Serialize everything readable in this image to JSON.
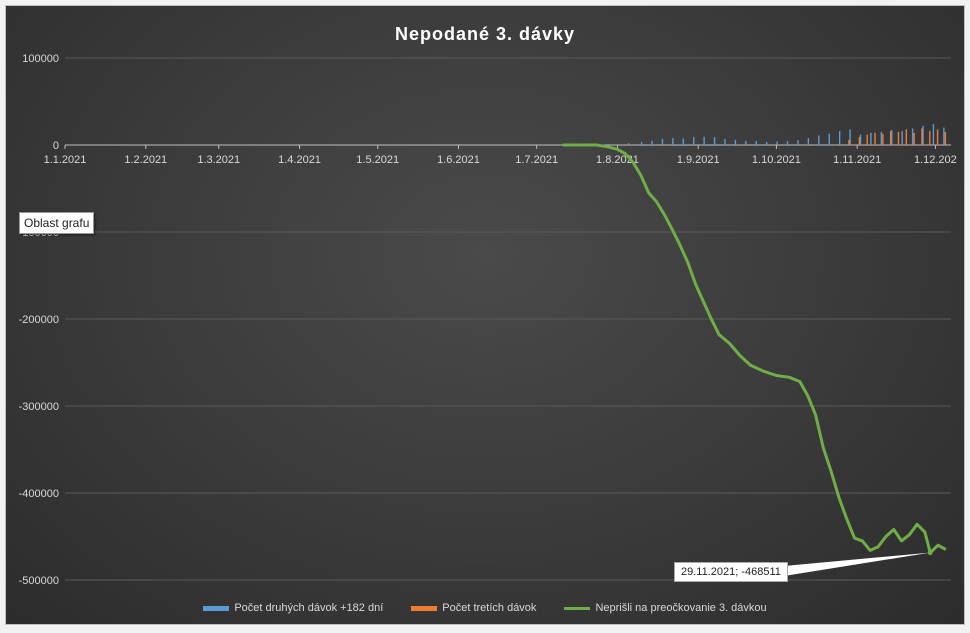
{
  "chart_data": {
    "type": "bar+line",
    "title": "Nepodané 3. dávky",
    "ylim": [
      -500000,
      100000
    ],
    "yticks": [
      100000,
      0,
      -100000,
      -200000,
      -300000,
      -400000,
      -500000
    ],
    "ytick_labels": [
      "100000",
      "0",
      "-100000",
      "-200000",
      "-300000",
      "-400000",
      "-500000"
    ],
    "xtick_labels": [
      "1.1.2021",
      "1.2.2021",
      "1.3.2021",
      "1.4.2021",
      "1.5.2021",
      "1.6.2021",
      "1.7.2021",
      "1.8.2021",
      "1.9.2021",
      "1.10.2021",
      "1.11.2021",
      "1.12.202"
    ],
    "xaxis_start": "2021-01-01",
    "xaxis_end": "2021-12-07",
    "grid": true,
    "legend_position": "bottom",
    "series": [
      {
        "name": "Počet druhých dávok +182 dní",
        "kind": "bar",
        "color": "#5b9bd5",
        "points": [
          [
            "2021-08-05",
            2000
          ],
          [
            "2021-08-10",
            3500
          ],
          [
            "2021-08-14",
            5000
          ],
          [
            "2021-08-18",
            7000
          ],
          [
            "2021-08-22",
            8000
          ],
          [
            "2021-08-26",
            7500
          ],
          [
            "2021-08-30",
            9000
          ],
          [
            "2021-09-03",
            9500
          ],
          [
            "2021-09-07",
            9000
          ],
          [
            "2021-09-11",
            7000
          ],
          [
            "2021-09-15",
            6000
          ],
          [
            "2021-09-19",
            5000
          ],
          [
            "2021-09-23",
            4500
          ],
          [
            "2021-09-27",
            3500
          ],
          [
            "2021-10-01",
            4000
          ],
          [
            "2021-10-05",
            4500
          ],
          [
            "2021-10-09",
            5500
          ],
          [
            "2021-10-13",
            8000
          ],
          [
            "2021-10-17",
            11000
          ],
          [
            "2021-10-21",
            13000
          ],
          [
            "2021-10-25",
            16000
          ],
          [
            "2021-10-29",
            18000
          ],
          [
            "2021-11-02",
            12000
          ],
          [
            "2021-11-06",
            14000
          ],
          [
            "2021-11-10",
            15000
          ],
          [
            "2021-11-14",
            17000
          ],
          [
            "2021-11-18",
            16000
          ],
          [
            "2021-11-22",
            19000
          ],
          [
            "2021-11-26",
            22000
          ],
          [
            "2021-11-30",
            24000
          ],
          [
            "2021-12-04",
            20000
          ]
        ]
      },
      {
        "name": "Počet tretích dávok",
        "kind": "bar",
        "color": "#ed7d31",
        "points": [
          [
            "2021-10-28",
            6000
          ],
          [
            "2021-11-01",
            9000
          ],
          [
            "2021-11-04",
            12000
          ],
          [
            "2021-11-07",
            14000
          ],
          [
            "2021-11-10",
            13000
          ],
          [
            "2021-11-13",
            16000
          ],
          [
            "2021-11-16",
            15000
          ],
          [
            "2021-11-19",
            18000
          ],
          [
            "2021-11-22",
            14000
          ],
          [
            "2021-11-25",
            19000
          ],
          [
            "2021-11-28",
            16000
          ],
          [
            "2021-12-01",
            18000
          ],
          [
            "2021-12-04",
            15000
          ]
        ]
      },
      {
        "name": "Neprišli na preočkovanie 3. dávkou",
        "kind": "line",
        "color": "#70ad47",
        "points": [
          [
            "2021-07-11",
            0
          ],
          [
            "2021-07-24",
            0
          ],
          [
            "2021-07-28",
            -2000
          ],
          [
            "2021-08-01",
            -5000
          ],
          [
            "2021-08-04",
            -10000
          ],
          [
            "2021-08-07",
            -20000
          ],
          [
            "2021-08-10",
            -35000
          ],
          [
            "2021-08-13",
            -55000
          ],
          [
            "2021-08-16",
            -65000
          ],
          [
            "2021-08-19",
            -80000
          ],
          [
            "2021-08-22",
            -97000
          ],
          [
            "2021-08-25",
            -115000
          ],
          [
            "2021-08-28",
            -135000
          ],
          [
            "2021-08-31",
            -160000
          ],
          [
            "2021-09-03",
            -180000
          ],
          [
            "2021-09-06",
            -200000
          ],
          [
            "2021-09-09",
            -218000
          ],
          [
            "2021-09-13",
            -228000
          ],
          [
            "2021-09-17",
            -242000
          ],
          [
            "2021-09-21",
            -253000
          ],
          [
            "2021-09-26",
            -260000
          ],
          [
            "2021-10-01",
            -265000
          ],
          [
            "2021-10-06",
            -267000
          ],
          [
            "2021-10-10",
            -272000
          ],
          [
            "2021-10-13",
            -288000
          ],
          [
            "2021-10-16",
            -310000
          ],
          [
            "2021-10-19",
            -348000
          ],
          [
            "2021-10-22",
            -375000
          ],
          [
            "2021-10-25",
            -405000
          ],
          [
            "2021-10-28",
            -430000
          ],
          [
            "2021-10-31",
            -452000
          ],
          [
            "2021-11-03",
            -455000
          ],
          [
            "2021-11-06",
            -466000
          ],
          [
            "2021-11-09",
            -462000
          ],
          [
            "2021-11-12",
            -450000
          ],
          [
            "2021-11-15",
            -442000
          ],
          [
            "2021-11-18",
            -455000
          ],
          [
            "2021-11-21",
            -448000
          ],
          [
            "2021-11-24",
            -436000
          ],
          [
            "2021-11-27",
            -445000
          ],
          [
            "2021-11-29",
            -468511
          ],
          [
            "2021-12-02",
            -460000
          ],
          [
            "2021-12-05",
            -465000
          ]
        ]
      }
    ],
    "annotation": {
      "text": "29.11.2021; -468511",
      "date": "2021-11-29",
      "value": -468511
    }
  },
  "overlay": {
    "tooltip": "Oblast grafu"
  }
}
